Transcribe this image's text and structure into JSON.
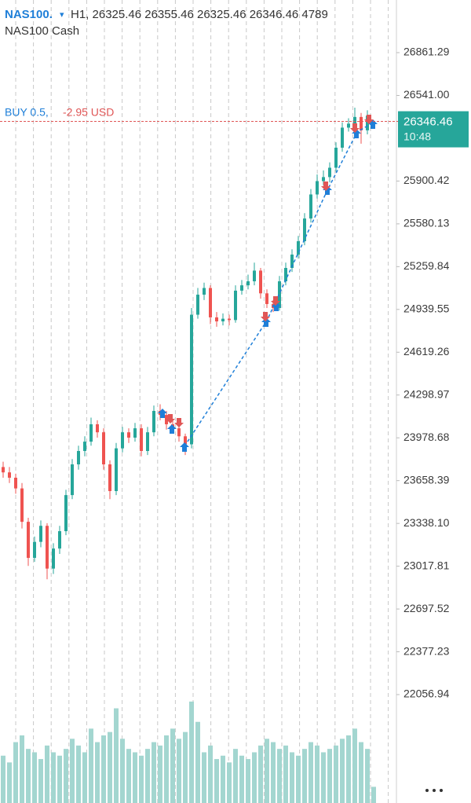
{
  "chart_data": {
    "type": "candlestick",
    "symbol": "NAS100.",
    "symbol_menu": "▾",
    "title": "H1, 26325.46 26355.46 26325.46 26346.46 4789",
    "subtitle": "NAS100 Cash",
    "position": {
      "label": "BUY 0.5,",
      "pnl": "-2.95 USD"
    },
    "current_price": 26346.46,
    "countdown": "10:48",
    "up_color": "#26a69a",
    "down_color": "#ef5350",
    "volume_color": "#a3d6d0",
    "price_line_color": "#e05656",
    "ylim": [
      21245.6,
      27255.3
    ],
    "yticks": [
      26861.29,
      {
        "value": 26541,
        "label": "26541.00"
      },
      25900.42,
      25580.13,
      25259.84,
      24939.55,
      24619.26,
      24298.97,
      23978.68,
      23658.39,
      {
        "value": 23338.1,
        "label": "23338.10"
      },
      23017.81,
      22697.52,
      22377.23,
      22056.94
    ],
    "y2lim": [
      0,
      33000
    ],
    "open": [
      23760,
      23720,
      23680,
      23600,
      23350,
      23080,
      23200,
      23320,
      23000,
      23150,
      23280,
      23550,
      23780,
      23880,
      23950,
      24080,
      24020,
      23780,
      23580,
      23900,
      24020,
      23980,
      24050,
      23880,
      24020,
      24180,
      24150,
      24080,
      24050,
      23990,
      23930,
      24900,
      25050,
      25100,
      24880,
      24850,
      24870,
      24860,
      25080,
      25120,
      25150,
      25230,
      25060,
      24980,
      24950,
      25150,
      25250,
      25350,
      25450,
      25620,
      25800,
      25900,
      25930,
      26000,
      26150,
      26300,
      26330,
      26380,
      26280,
      26325.46
    ],
    "high": [
      23800,
      23760,
      23710,
      23640,
      23380,
      23240,
      23360,
      23340,
      23190,
      23320,
      23590,
      23820,
      23920,
      23990,
      24130,
      24110,
      24050,
      23810,
      23940,
      24060,
      24050,
      24090,
      24080,
      24060,
      24220,
      24230,
      24180,
      24110,
      24080,
      24010,
      24950,
      25100,
      25140,
      25120,
      24920,
      24910,
      24900,
      25120,
      25160,
      25200,
      25290,
      25250,
      25090,
      25010,
      25190,
      25290,
      25390,
      25490,
      25660,
      25840,
      25950,
      25980,
      26040,
      26190,
      26340,
      26370,
      26450,
      26410,
      26430,
      26355.46
    ],
    "low": [
      23680,
      23640,
      23560,
      23300,
      23020,
      23050,
      23160,
      22920,
      22960,
      23110,
      23250,
      23520,
      23740,
      23840,
      23920,
      23980,
      23740,
      23520,
      23550,
      23870,
      23940,
      23950,
      23840,
      23850,
      23990,
      24110,
      24040,
      24010,
      23950,
      23850,
      23900,
      24870,
      25010,
      24830,
      24810,
      24820,
      24820,
      24840,
      25050,
      25090,
      25120,
      25020,
      24950,
      24920,
      24930,
      25120,
      25220,
      25320,
      25420,
      25590,
      25770,
      25870,
      25890,
      25970,
      26120,
      26270,
      26300,
      26180,
      26250,
      26325.46
    ],
    "close": [
      23720,
      23680,
      23600,
      23350,
      23080,
      23200,
      23320,
      23000,
      23150,
      23280,
      23550,
      23780,
      23880,
      23950,
      24080,
      24020,
      23780,
      23580,
      23900,
      24020,
      23980,
      24050,
      23880,
      24020,
      24180,
      24150,
      24080,
      24050,
      23990,
      23930,
      24900,
      25050,
      25100,
      24880,
      24850,
      24870,
      24860,
      25080,
      25120,
      25150,
      25230,
      25060,
      24980,
      24950,
      25150,
      25250,
      25350,
      25450,
      25620,
      25800,
      25900,
      25930,
      26000,
      26150,
      26300,
      26330,
      26380,
      26280,
      26390,
      26346.46
    ],
    "volume": [
      14000,
      12000,
      18000,
      20000,
      16000,
      15000,
      13000,
      17000,
      15000,
      14000,
      16000,
      19000,
      17000,
      15000,
      22000,
      18000,
      20000,
      21000,
      28000,
      19000,
      16000,
      15000,
      14000,
      16000,
      18000,
      17000,
      20000,
      22000,
      19000,
      21000,
      30000,
      24000,
      15000,
      17000,
      13000,
      14000,
      12000,
      16000,
      14000,
      13000,
      15000,
      17000,
      19000,
      18000,
      16000,
      17000,
      15000,
      14000,
      16000,
      18000,
      17000,
      15000,
      16000,
      17000,
      19000,
      20000,
      22000,
      18000,
      16000,
      4789
    ]
  }
}
